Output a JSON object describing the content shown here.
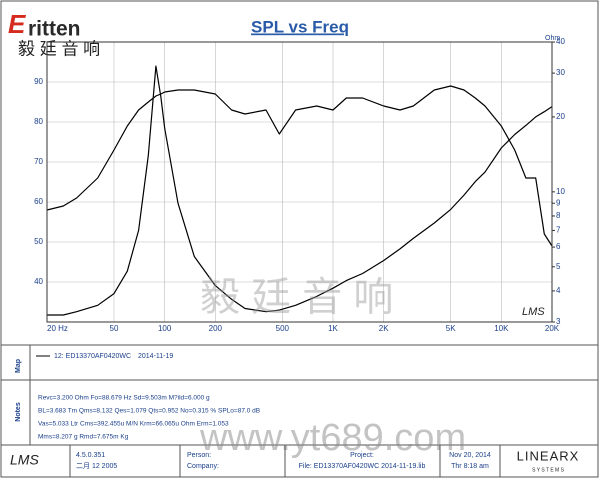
{
  "chart_data": {
    "type": "line",
    "title": "SPL vs Freq",
    "y2_label": "Ohm",
    "annotation": "LMS",
    "log_x": true,
    "log_y2": true,
    "grid": true,
    "x": [
      20,
      25,
      30,
      40,
      50,
      60,
      70,
      80,
      88.7,
      95,
      100,
      120,
      150,
      200,
      250,
      300,
      400,
      480,
      600,
      800,
      1000,
      1200,
      1500,
      2000,
      2500,
      3000,
      4000,
      5000,
      6000,
      7000,
      8000,
      10000,
      12000,
      14000,
      16000,
      18000,
      20000
    ],
    "series": [
      {
        "name": "12: ED13370AF0420WC",
        "color": "#000000",
        "values": [
          58,
          59,
          61,
          66,
          73,
          79,
          83,
          85,
          86.5,
          87,
          87.5,
          88,
          88,
          87,
          83,
          82,
          83,
          77,
          83,
          84,
          83,
          86,
          86,
          84,
          83,
          84,
          88,
          89,
          88,
          86,
          84,
          79,
          73,
          66,
          66,
          52,
          49
        ]
      },
      {
        "color": "#000000",
        "axis": "y2",
        "values": [
          3.2,
          3.2,
          3.3,
          3.5,
          3.9,
          4.8,
          7,
          14,
          32,
          24,
          18,
          9,
          5.5,
          4.2,
          3.7,
          3.4,
          3.3,
          3.35,
          3.5,
          3.8,
          4.1,
          4.4,
          4.7,
          5.3,
          5.9,
          6.5,
          7.5,
          8.5,
          9.7,
          11,
          12,
          15,
          17,
          18.5,
          20,
          21,
          22
        ]
      }
    ],
    "xlim": [
      20,
      20000
    ],
    "xticks": [
      {
        "value": 20,
        "label": "20 Hz"
      },
      50,
      100,
      200,
      500,
      {
        "value": 1000,
        "label": "1K"
      },
      {
        "value": 2000,
        "label": "2K"
      },
      {
        "value": 5000,
        "label": "5K"
      },
      {
        "value": 10000,
        "label": "10K"
      },
      {
        "value": 20000,
        "label": "20K"
      }
    ],
    "ylim": [
      30,
      100
    ],
    "yticks": [
      40,
      50,
      60,
      70,
      80,
      90
    ],
    "y2lim": [
      3,
      40
    ],
    "y2ticks": [
      3,
      4,
      5,
      6,
      7,
      8,
      9,
      10,
      20,
      30,
      40
    ]
  },
  "header": {
    "logo": "ritten",
    "logo_initial": "E",
    "logo_cn": "毅 廷 音 响"
  },
  "map": {
    "label": "Map",
    "legend_date": "2014-11-19"
  },
  "notes": {
    "label": "Notes",
    "lines": [
      "Revc=3.200 Ohm  Fo=88.679 Hz  Sd=9.503m M?ild=6.000 g",
      "BL=3.683 Tm  Qms=8.132  Qes=1.079  Qts=0.952  No=0.315 %  SPLo=87.0 dB",
      "Vas=5.033 Ltr  Cms=392.455u M/N  Krm=66.065u Ohm  Erm=1.053",
      "Mms=8.207 g  Rmd=7.675m Kg"
    ]
  },
  "watermark": {
    "cn": "毅 廷 音 响",
    "url": "www.yt689.com"
  },
  "footer": {
    "logo": "LMS",
    "version": "4.5.0.351",
    "date": "二月 12 2005",
    "person": "Person:",
    "company": "Company:",
    "project": "Project:",
    "file": "File: ED13370AF0420WC   2014-11-19.lib",
    "print_date": "Nov 20, 2014",
    "print_time": "Thr  8:18 am",
    "brand": "LINEARX",
    "brand_sub": "S Y S T E M S"
  }
}
